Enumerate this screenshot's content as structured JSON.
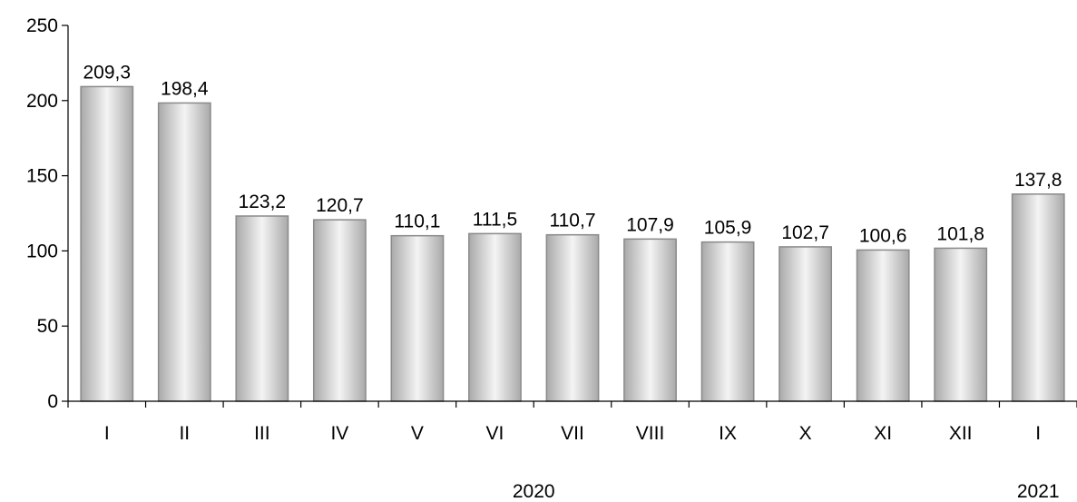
{
  "chart_data": {
    "type": "bar",
    "title": "",
    "xlabel": "",
    "ylabel": "",
    "categories": [
      "I",
      "II",
      "III",
      "IV",
      "V",
      "VI",
      "VII",
      "VIII",
      "IX",
      "X",
      "XI",
      "XII",
      "I"
    ],
    "values": [
      209.3,
      198.4,
      123.2,
      120.7,
      110.1,
      111.5,
      110.7,
      107.9,
      105.9,
      102.7,
      100.6,
      101.8,
      137.8
    ],
    "value_labels": [
      "209,3",
      "198,4",
      "123,2",
      "120,7",
      "110,1",
      "111,5",
      "110,7",
      "107,9",
      "105,9",
      "102,7",
      "100,6",
      "101,8",
      "137,8"
    ],
    "ylim": [
      0,
      250
    ],
    "y_ticks": [
      0,
      50,
      100,
      150,
      200,
      250
    ],
    "y_tick_labels": [
      "0",
      "50",
      "100",
      "150",
      "200",
      "250"
    ],
    "year_groups": [
      {
        "label": "2020",
        "first_index": 0,
        "last_index": 11
      },
      {
        "label": "2021",
        "first_index": 12,
        "last_index": 12
      }
    ],
    "grid": false,
    "legend": "none",
    "colors": {
      "bar_light": "#f4f4f4",
      "bar_dark": "#a9a9a9",
      "bar_border": "#8a8a8a"
    }
  }
}
